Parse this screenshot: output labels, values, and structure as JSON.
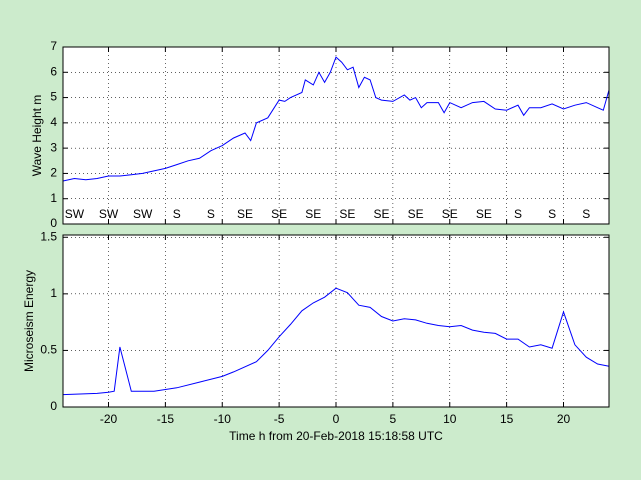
{
  "chart_data": [
    {
      "type": "line",
      "ylabel": "Wave Height m",
      "color": "#0000ff",
      "x": [
        -24,
        -23,
        -22,
        -21,
        -20,
        -19,
        -18,
        -17,
        -16,
        -15,
        -14,
        -13,
        -12,
        -11,
        -10,
        -9,
        -8,
        -7.5,
        -7,
        -6,
        -5,
        -4.5,
        -4,
        -3,
        -2.7,
        -2,
        -1.5,
        -1,
        -0.5,
        0,
        0.5,
        1,
        1.5,
        2,
        2.5,
        3,
        3.5,
        4,
        5,
        6,
        6.5,
        7,
        7.5,
        8,
        9,
        9.5,
        10,
        11,
        12,
        13,
        14,
        15,
        16,
        16.5,
        17,
        18,
        19,
        20,
        21,
        22,
        23,
        23.5,
        24
      ],
      "values": [
        1.7,
        1.8,
        1.75,
        1.8,
        1.9,
        1.9,
        1.95,
        2.0,
        2.1,
        2.2,
        2.35,
        2.5,
        2.6,
        2.9,
        3.1,
        3.4,
        3.6,
        3.3,
        4.0,
        4.2,
        4.9,
        4.85,
        5.0,
        5.2,
        5.7,
        5.5,
        6.0,
        5.6,
        6.0,
        6.6,
        6.4,
        6.1,
        6.2,
        5.4,
        5.8,
        5.7,
        5.0,
        4.9,
        4.85,
        5.1,
        4.9,
        5.0,
        4.6,
        4.8,
        4.8,
        4.4,
        4.8,
        4.6,
        4.8,
        4.85,
        4.55,
        4.5,
        4.7,
        4.3,
        4.6,
        4.6,
        4.75,
        4.55,
        4.7,
        4.8,
        4.6,
        4.5,
        5.3
      ],
      "xlim": [
        -24,
        24
      ],
      "xticks": [
        -20,
        -15,
        -10,
        -5,
        0,
        5,
        10,
        15,
        20
      ],
      "show_xticklabels": false,
      "ylim": [
        0,
        7
      ],
      "yticks": [
        0,
        1,
        2,
        3,
        4,
        5,
        6,
        7
      ],
      "grid": true,
      "direction_labels": {
        "x": [
          -23,
          -20,
          -17,
          -14,
          -11,
          -8,
          -5,
          -2,
          1,
          4,
          7,
          10,
          13,
          16,
          19,
          22
        ],
        "labels": [
          "SW",
          "SW",
          "SW",
          "S",
          "S",
          "SE",
          "SE",
          "SE",
          "SE",
          "SE",
          "SE",
          "SE",
          "SE",
          "S",
          "S",
          "S"
        ]
      }
    },
    {
      "type": "line",
      "ylabel": "Microseism Energy",
      "xlabel": "Time h from 20-Feb-2018 15:18:58 UTC",
      "color": "#0000ff",
      "x": [
        -24,
        -21,
        -20,
        -19.5,
        -19,
        -18,
        -16,
        -14,
        -12,
        -10,
        -9,
        -7,
        -6,
        -5,
        -4,
        -3,
        -2,
        -1,
        0,
        1,
        2,
        3,
        4,
        5,
        6,
        7,
        8,
        9,
        10,
        11,
        12,
        13,
        14,
        15,
        16,
        17,
        18,
        19,
        20,
        21,
        22,
        23,
        24
      ],
      "values": [
        0.11,
        0.12,
        0.13,
        0.14,
        0.53,
        0.14,
        0.14,
        0.17,
        0.22,
        0.27,
        0.31,
        0.4,
        0.5,
        0.62,
        0.73,
        0.85,
        0.92,
        0.97,
        1.05,
        1.01,
        0.9,
        0.88,
        0.8,
        0.76,
        0.78,
        0.77,
        0.74,
        0.72,
        0.71,
        0.72,
        0.68,
        0.66,
        0.65,
        0.6,
        0.6,
        0.53,
        0.55,
        0.52,
        0.84,
        0.55,
        0.44,
        0.38,
        0.36
      ],
      "xlim": [
        -24,
        24
      ],
      "xticks": [
        -20,
        -15,
        -10,
        -5,
        0,
        5,
        10,
        15,
        20
      ],
      "show_xticklabels": true,
      "ylim": [
        0,
        1.52
      ],
      "yticks": [
        0,
        0.5,
        1,
        1.5
      ],
      "grid": true
    }
  ]
}
